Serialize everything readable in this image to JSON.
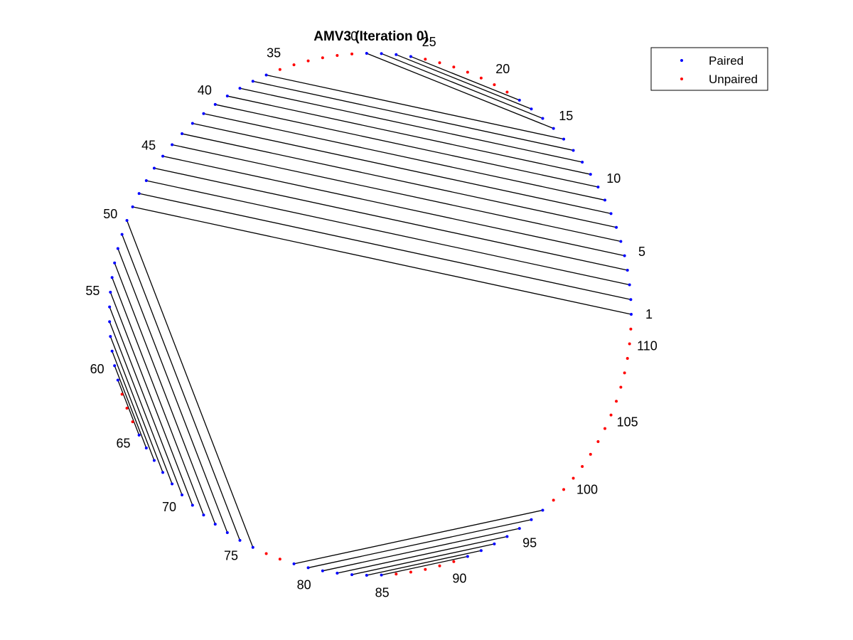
{
  "chart_data": {
    "type": "scatter",
    "title": "AMV3 (Iteration 0)",
    "n_positions": 111,
    "start_angle_deg": 0,
    "direction": "counterclockwise",
    "position_labels": [
      "1",
      "5",
      "10",
      "15",
      "20",
      "25",
      "30",
      "35",
      "40",
      "45",
      "50",
      "55",
      "60",
      "65",
      "70",
      "75",
      "80",
      "85",
      "90",
      "95",
      "100",
      "105",
      "110"
    ],
    "label_positions": [
      1,
      5,
      10,
      15,
      20,
      25,
      30,
      35,
      40,
      45,
      50,
      55,
      60,
      65,
      70,
      75,
      80,
      85,
      90,
      95,
      100,
      105,
      110
    ],
    "pairs": [
      [
        1,
        49
      ],
      [
        2,
        48
      ],
      [
        3,
        47
      ],
      [
        4,
        46
      ],
      [
        5,
        45
      ],
      [
        6,
        44
      ],
      [
        7,
        43
      ],
      [
        8,
        42
      ],
      [
        9,
        41
      ],
      [
        10,
        40
      ],
      [
        11,
        39
      ],
      [
        12,
        38
      ],
      [
        13,
        37
      ],
      [
        14,
        36
      ],
      [
        15,
        29
      ],
      [
        16,
        28
      ],
      [
        17,
        27
      ],
      [
        18,
        26
      ],
      [
        50,
        76
      ],
      [
        51,
        75
      ],
      [
        52,
        74
      ],
      [
        53,
        73
      ],
      [
        54,
        72
      ],
      [
        55,
        71
      ],
      [
        56,
        70
      ],
      [
        57,
        69
      ],
      [
        58,
        68
      ],
      [
        59,
        67
      ],
      [
        60,
        66
      ],
      [
        61,
        65
      ],
      [
        79,
        97
      ],
      [
        80,
        96
      ],
      [
        81,
        95
      ],
      [
        82,
        94
      ],
      [
        83,
        93
      ],
      [
        84,
        92
      ],
      [
        85,
        91
      ]
    ],
    "legend": [
      {
        "name": "Paired",
        "color": "#0000ff"
      },
      {
        "name": "Unpaired",
        "color": "#ff0000"
      }
    ],
    "legend_position": "top-right",
    "grid": false
  }
}
